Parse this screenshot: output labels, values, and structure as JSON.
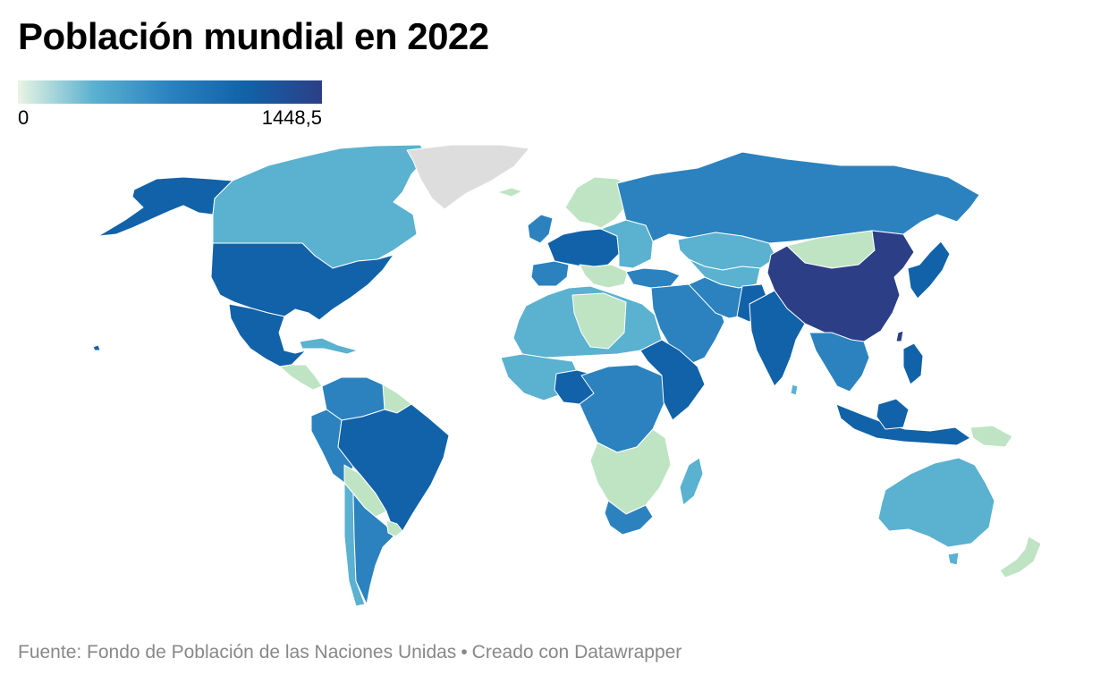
{
  "title": "Población mundial en 2022",
  "legend": {
    "min_label": "0",
    "max_label": "1448,5",
    "min": 0,
    "max": 1448.5,
    "gradient": [
      "#e9f5e3",
      "#5ab1d0",
      "#2b82bf",
      "#1162a8",
      "#2c3f86"
    ]
  },
  "colors": {
    "no_data": "#dddddd",
    "border": "#ffffff"
  },
  "footer": {
    "source": "Fuente: Fondo de Población de las Naciones Unidas",
    "separator": "•",
    "credit": "Creado con Datawrapper"
  }
}
